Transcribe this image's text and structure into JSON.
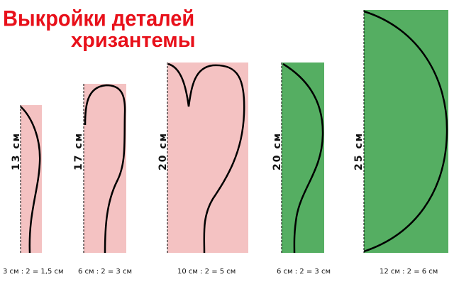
{
  "title": {
    "line1": "Выкройки деталей",
    "line2": "хризантемы"
  },
  "colors": {
    "title": "#e8101a",
    "pink": "#f4c2c2",
    "green": "#55ae62"
  },
  "pieces": [
    {
      "height": "13 см",
      "formula": "3 см : 2 = 1,5 см",
      "color": "pink"
    },
    {
      "height": "17 см",
      "formula": "6 см : 2 = 3 см",
      "color": "pink"
    },
    {
      "height": "20 см",
      "formula": "10 см : 2 = 5 см",
      "color": "pink"
    },
    {
      "height": "20 см",
      "formula": "6 см : 2 = 3 см",
      "color": "green"
    },
    {
      "height": "25 см",
      "formula": "12 см : 2 = 6 см",
      "color": "green"
    }
  ]
}
